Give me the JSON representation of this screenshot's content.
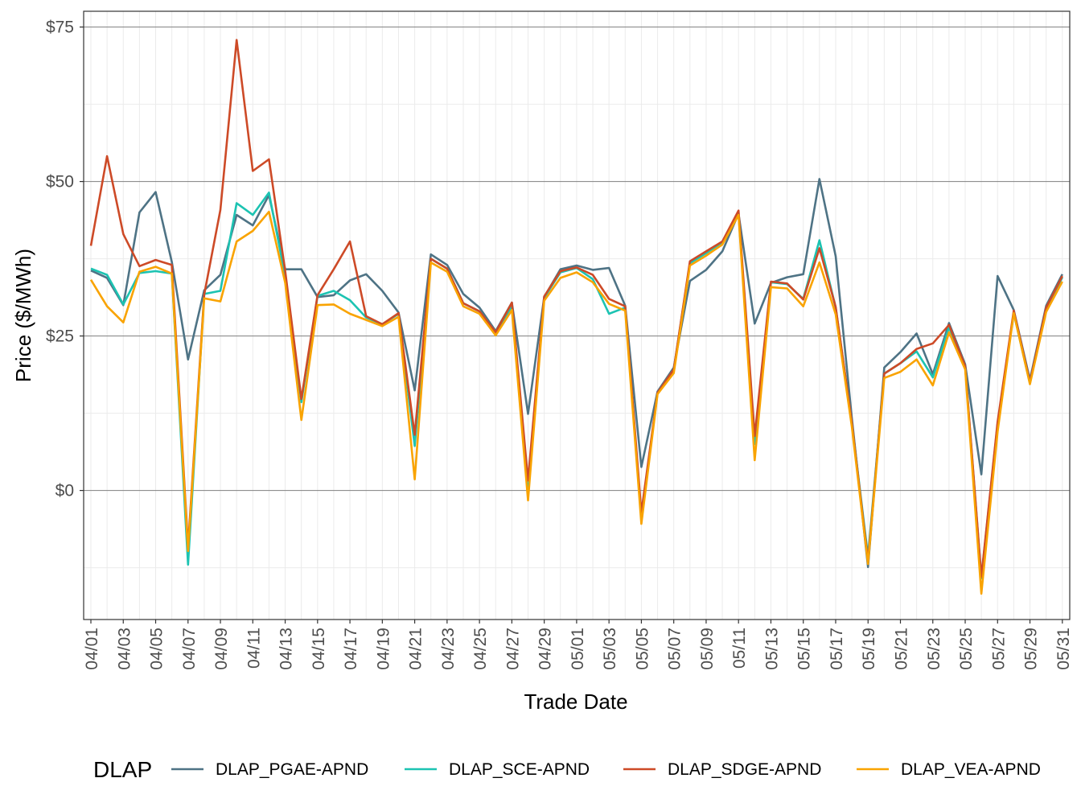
{
  "chart_data": {
    "type": "line",
    "xlabel": "Trade Date",
    "ylabel": "Price ($/MWh)",
    "ylim": [
      -16,
      77
    ],
    "y_ticks": [
      0,
      25,
      50,
      75
    ],
    "y_tick_labels": [
      "$0",
      "$25",
      "$50",
      "$75"
    ],
    "x": [
      "04/01",
      "04/02",
      "04/03",
      "04/04",
      "04/05",
      "04/06",
      "04/07",
      "04/08",
      "04/09",
      "04/10",
      "04/11",
      "04/12",
      "04/13",
      "04/14",
      "04/15",
      "04/16",
      "04/17",
      "04/18",
      "04/19",
      "04/20",
      "04/21",
      "04/22",
      "04/23",
      "04/24",
      "04/25",
      "04/26",
      "04/27",
      "04/28",
      "04/29",
      "04/30",
      "05/01",
      "05/02",
      "05/03",
      "05/04",
      "05/05",
      "05/06",
      "05/07",
      "05/08",
      "05/09",
      "05/10",
      "05/11",
      "05/12",
      "05/13",
      "05/14",
      "05/15",
      "05/16",
      "05/17",
      "05/18",
      "05/19",
      "05/20",
      "05/21",
      "05/22",
      "05/23",
      "05/24",
      "05/25",
      "05/26",
      "05/27",
      "05/28",
      "05/29",
      "05/30",
      "05/31"
    ],
    "x_tick_labels": [
      "04/01",
      "04/03",
      "04/05",
      "04/07",
      "04/09",
      "04/11",
      "04/13",
      "04/15",
      "04/17",
      "04/19",
      "04/21",
      "04/23",
      "04/25",
      "04/27",
      "04/29",
      "05/01",
      "05/03",
      "05/05",
      "05/07",
      "05/09",
      "05/11",
      "05/13",
      "05/15",
      "05/17",
      "05/19",
      "05/21",
      "05/23",
      "05/25",
      "05/27",
      "05/29",
      "05/31"
    ],
    "grid": true,
    "legend": {
      "title": "DLAP",
      "position": "bottom"
    },
    "series": [
      {
        "name": "DLAP_PGAE-APND",
        "color": "#4e7385",
        "values": [
          35.6,
          34.4,
          30.0,
          45.0,
          48.3,
          37.0,
          21.2,
          32.4,
          34.9,
          44.6,
          42.9,
          47.8,
          35.8,
          35.8,
          31.3,
          31.6,
          34.0,
          35.0,
          32.3,
          28.8,
          16.2,
          38.2,
          36.5,
          31.8,
          29.6,
          25.8,
          30.4,
          12.4,
          31.3,
          35.8,
          36.4,
          35.7,
          36.0,
          29.9,
          3.8,
          16.0,
          19.9,
          33.9,
          35.7,
          38.7,
          44.8,
          27.0,
          33.6,
          34.5,
          35.0,
          50.4,
          37.9,
          11.7,
          -12.4,
          19.9,
          22.4,
          25.4,
          18.8,
          27.1,
          20.4,
          2.6,
          34.7,
          29.2,
          17.9,
          29.9,
          35.0
        ]
      },
      {
        "name": "DLAP_SCE-APND",
        "color": "#1cc3b2",
        "values": [
          35.9,
          34.9,
          30.1,
          35.2,
          35.5,
          35.1,
          -12.0,
          31.8,
          32.3,
          46.5,
          44.6,
          48.2,
          34.6,
          14.3,
          31.5,
          32.3,
          30.8,
          28.0,
          26.9,
          28.6,
          7.2,
          37.5,
          35.9,
          30.3,
          29.0,
          25.6,
          29.8,
          -0.8,
          31.2,
          35.3,
          36.0,
          34.2,
          28.6,
          29.6,
          -4.4,
          15.8,
          19.6,
          36.8,
          38.4,
          40.2,
          44.8,
          7.5,
          33.7,
          33.4,
          31.0,
          40.5,
          29.6,
          11.0,
          -10.7,
          18.9,
          20.6,
          22.5,
          18.3,
          26.4,
          20.0,
          -14.2,
          10.8,
          28.7,
          17.3,
          29.4,
          34.5
        ]
      },
      {
        "name": "DLAP_SDGE-APND",
        "color": "#cd4a27",
        "values": [
          39.6,
          54.1,
          41.5,
          36.3,
          37.3,
          36.5,
          -9.1,
          31.7,
          45.4,
          72.9,
          51.7,
          53.6,
          35.5,
          14.8,
          31.6,
          35.8,
          40.3,
          28.2,
          26.9,
          28.7,
          9.0,
          37.5,
          35.9,
          30.3,
          29.0,
          25.6,
          30.4,
          1.6,
          31.4,
          35.5,
          36.1,
          34.9,
          31.0,
          29.8,
          -3.6,
          15.8,
          19.6,
          37.1,
          38.7,
          40.3,
          45.3,
          8.8,
          33.8,
          33.5,
          30.9,
          39.2,
          29.7,
          11.0,
          -11.4,
          18.9,
          20.6,
          22.9,
          23.8,
          26.8,
          20.1,
          -14.0,
          11.1,
          29.1,
          17.5,
          29.6,
          34.7
        ]
      },
      {
        "name": "DLAP_VEA-APND",
        "color": "#f9a300",
        "values": [
          34.1,
          29.8,
          27.2,
          35.4,
          36.2,
          35.1,
          -9.8,
          31.1,
          30.6,
          40.3,
          42.0,
          45.1,
          33.6,
          11.4,
          30.0,
          30.1,
          28.6,
          27.6,
          26.6,
          28.1,
          1.8,
          36.9,
          35.4,
          29.8,
          28.6,
          25.1,
          29.2,
          -1.6,
          30.7,
          34.4,
          35.3,
          33.7,
          30.2,
          29.1,
          -5.4,
          15.6,
          19.0,
          36.4,
          38.0,
          39.8,
          44.6,
          4.9,
          32.9,
          32.7,
          29.8,
          36.9,
          28.5,
          10.3,
          -11.9,
          18.2,
          19.2,
          21.2,
          17.0,
          25.6,
          19.6,
          -16.7,
          9.5,
          28.7,
          17.2,
          28.9,
          33.8
        ]
      }
    ]
  }
}
